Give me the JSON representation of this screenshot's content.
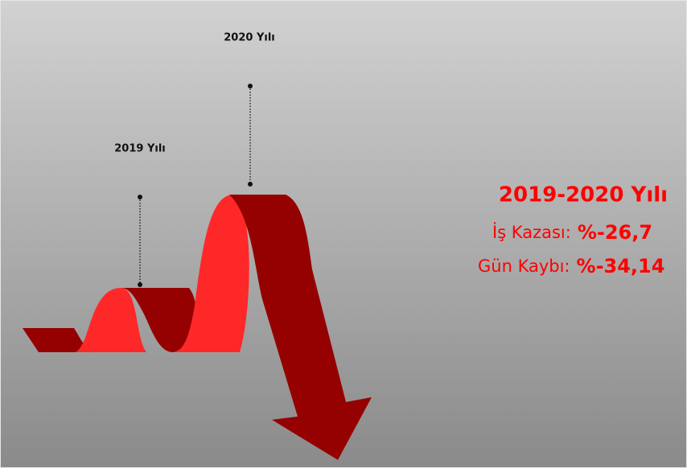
{
  "labels": {
    "year_2020": "2020 Yılı",
    "year_2019": "2019 Yılı"
  },
  "summary": {
    "title": "2019-2020 Yılı",
    "items": [
      {
        "label": "İş Kazası:",
        "value": "%-26,7"
      },
      {
        "label": "Gün Kaybı:",
        "value": "%-34,14"
      }
    ]
  }
}
